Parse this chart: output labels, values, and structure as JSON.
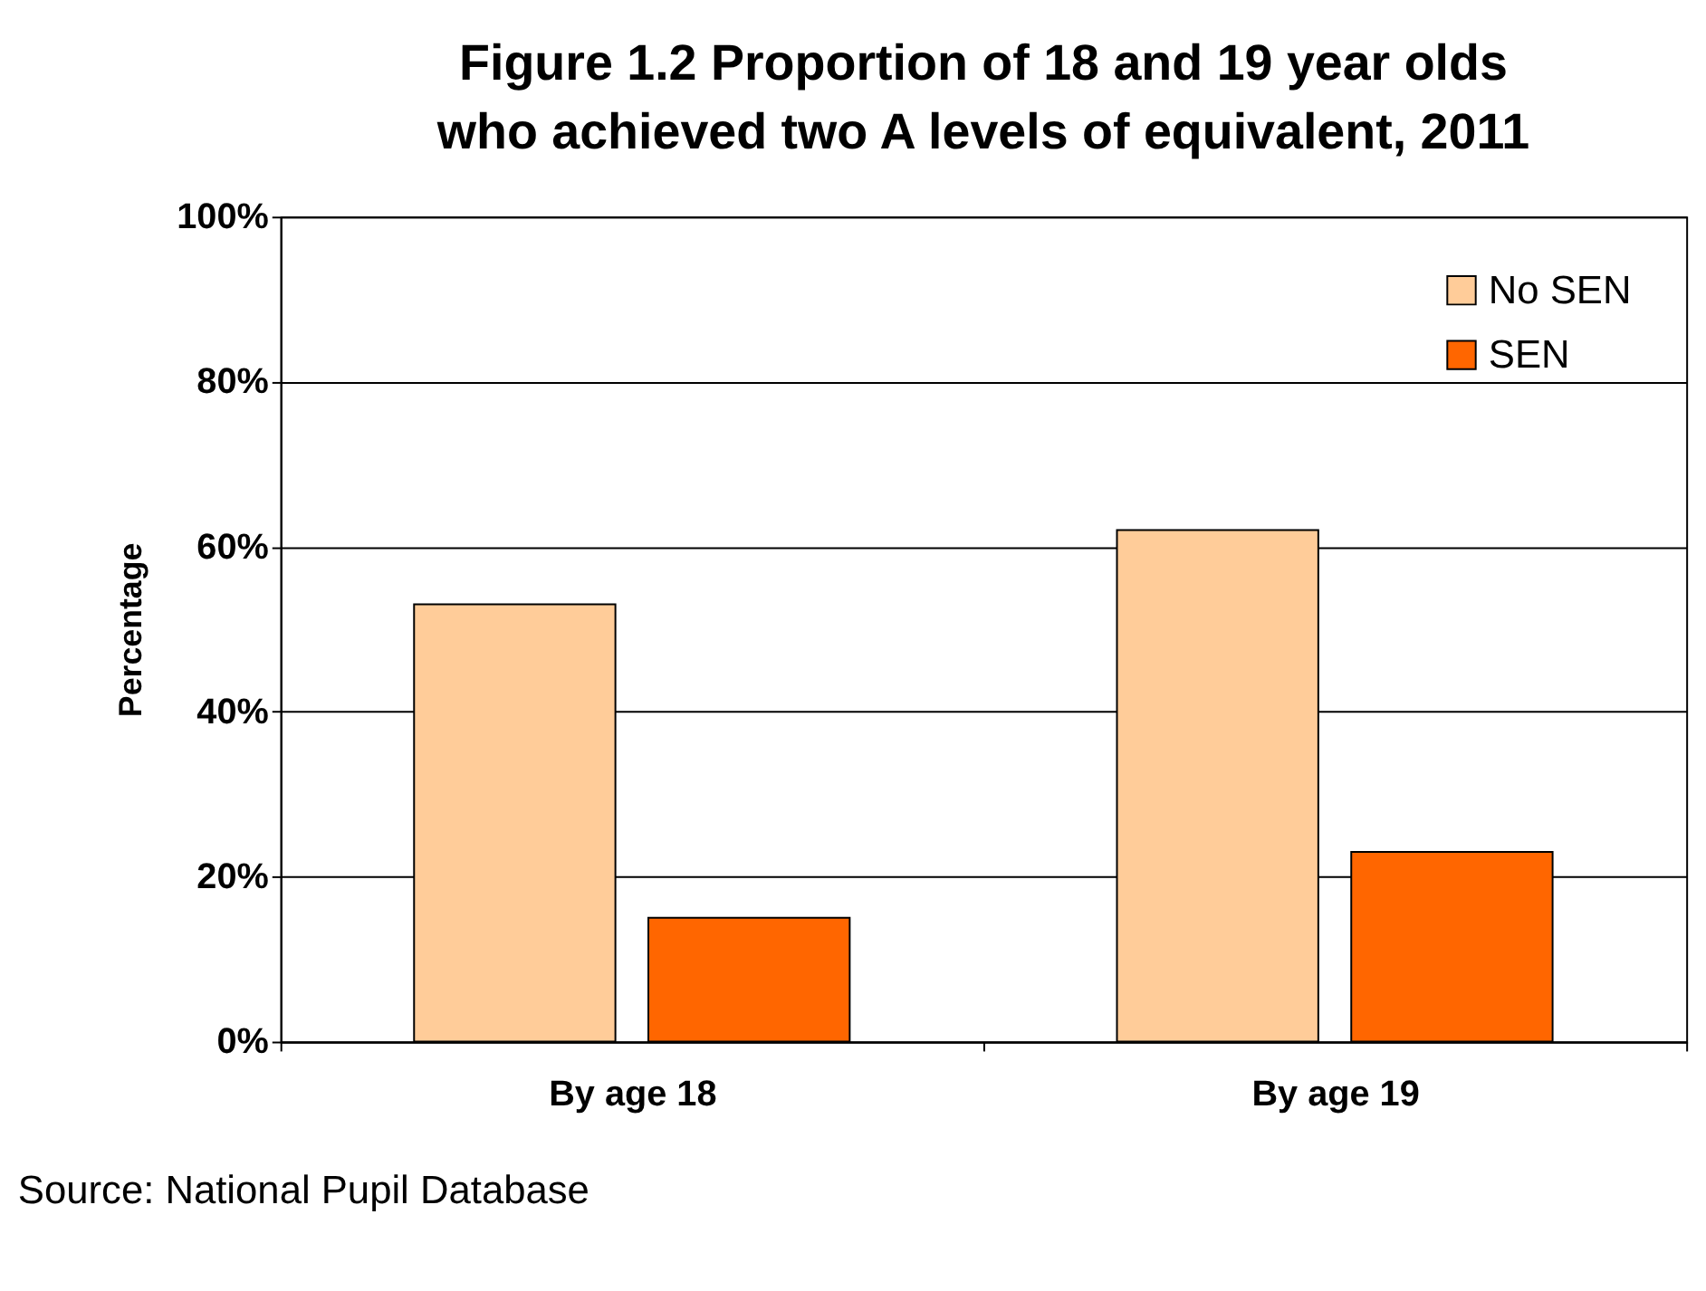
{
  "chart_data": {
    "type": "bar",
    "title": "Figure 1.2 Proportion of 18 and 19 year olds who achieved two A levels of equivalent, 2011",
    "ylabel": "Percentage",
    "categories": [
      "By age 18",
      "By age 19"
    ],
    "series": [
      {
        "name": "No SEN",
        "color": "#ffcc99",
        "values": [
          53,
          62
        ]
      },
      {
        "name": "SEN",
        "color": "#ff6600",
        "values": [
          15,
          23
        ]
      }
    ],
    "ylim": [
      0,
      100
    ],
    "yticks": [
      {
        "value": 0,
        "label": "0%"
      },
      {
        "value": 20,
        "label": "20%"
      },
      {
        "value": 40,
        "label": "40%"
      },
      {
        "value": 60,
        "label": "60%"
      },
      {
        "value": 80,
        "label": "80%"
      },
      {
        "value": 100,
        "label": "100%"
      }
    ],
    "grid": "y",
    "legend": "top right",
    "annotations": [
      "Source: National Pupil Database"
    ]
  }
}
